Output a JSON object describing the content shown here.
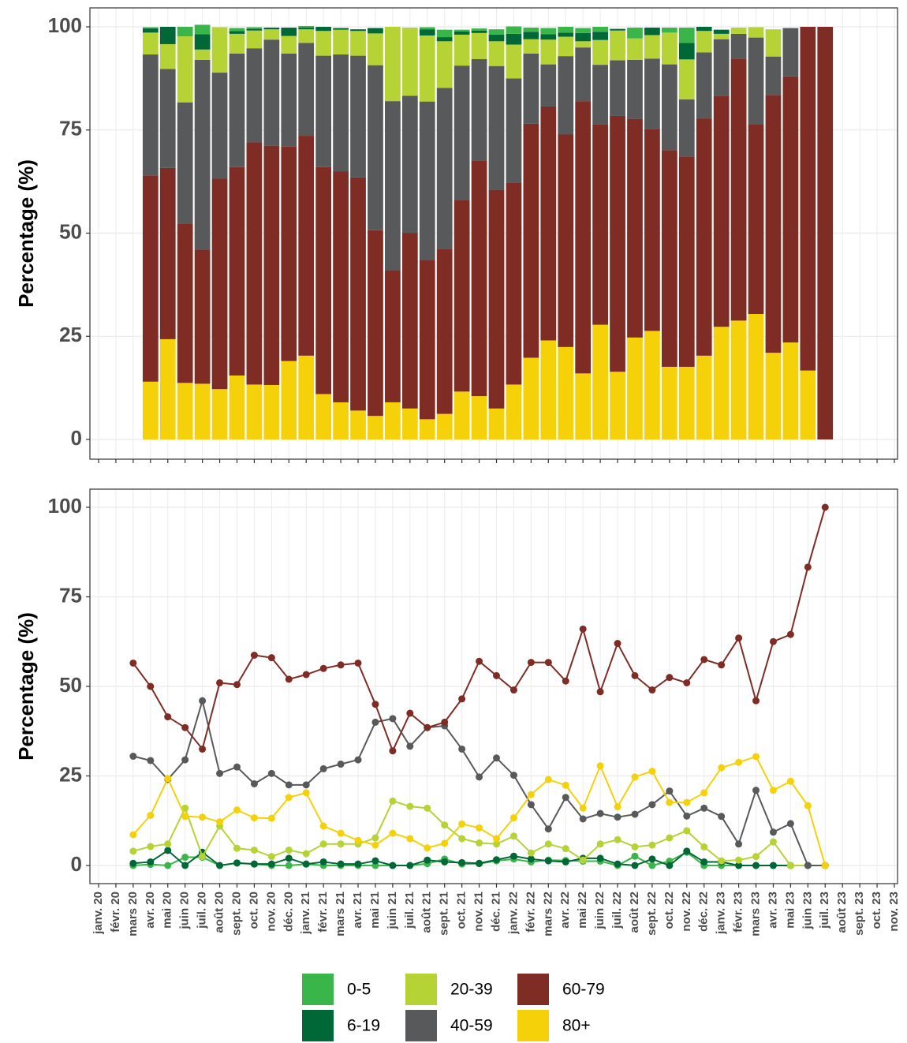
{
  "chart_data": [
    {
      "type": "bar",
      "stacked": true,
      "ylabel": "Percentage (%)",
      "ylim": [
        0,
        100
      ],
      "yticks": [
        0,
        25,
        50,
        75,
        100
      ],
      "grid": true,
      "series": [
        {
          "color": "#f5d10a",
          "values": [
            null,
            null,
            null,
            14,
            24.3,
            13.7,
            13.5,
            12.2,
            15.5,
            13.3,
            13.2,
            19,
            20.3,
            11,
            9,
            7,
            5.7,
            9,
            7.5,
            4.9,
            6.2,
            11.6,
            10.5,
            7.5,
            13.3,
            19.8,
            24,
            22.4,
            16,
            27.8,
            16.4,
            24.7,
            26.3,
            17.6,
            17.6,
            20.3,
            27.3,
            28.8,
            30.4,
            21,
            23.5,
            16.7,
            0,
            null,
            null,
            null,
            null
          ]
        },
        {
          "color": "#7f2c25",
          "values": [
            null,
            null,
            null,
            50,
            41.5,
            38.5,
            32.5,
            51,
            50.5,
            58.7,
            58,
            52,
            53.3,
            55,
            56,
            56.5,
            45,
            32,
            42.5,
            38.5,
            40,
            46.5,
            57,
            53,
            49,
            56.7,
            56.7,
            51.5,
            66,
            48.5,
            62,
            53,
            49,
            52.5,
            51,
            57.5,
            56,
            63.5,
            46,
            62.5,
            64.5,
            83.3,
            100,
            null,
            null,
            null,
            null
          ]
        },
        {
          "color": "#58595b",
          "values": [
            null,
            null,
            null,
            29.3,
            24,
            29.5,
            46,
            25.7,
            27.5,
            22.8,
            25.7,
            22.5,
            22.5,
            27,
            28.3,
            29.5,
            40,
            41,
            33.3,
            38.5,
            39,
            32.5,
            24.7,
            30,
            25.2,
            17,
            10.2,
            19,
            13,
            14.5,
            13.5,
            14.3,
            17,
            20.8,
            13.8,
            16,
            13.7,
            6,
            21,
            9.3,
            11.7,
            0,
            0,
            null,
            null,
            null,
            null
          ]
        },
        {
          "color": "#b5d334",
          "values": [
            null,
            null,
            null,
            5.3,
            6,
            16,
            2.5,
            11,
            4.8,
            4.3,
            2.5,
            4.3,
            3.3,
            6,
            6,
            6,
            7.7,
            18,
            16.5,
            16,
            11.3,
            7.5,
            6.3,
            6,
            8.2,
            3.5,
            6,
            4.7,
            1.5,
            6,
            7.2,
            5.2,
            5.7,
            7.7,
            9.7,
            5.2,
            1.3,
            1.5,
            2.5,
            6.6,
            0,
            0,
            0,
            null,
            null,
            null,
            null
          ]
        },
        {
          "color": "#006837",
          "values": [
            null,
            null,
            null,
            1,
            4.2,
            0,
            3.7,
            0,
            0.7,
            0.4,
            0.4,
            2,
            0.4,
            1,
            0.4,
            0.4,
            1.3,
            0,
            0,
            1.5,
            1,
            0.8,
            0.6,
            1.6,
            2.6,
            1.8,
            1.3,
            1,
            2,
            2,
            0.4,
            0,
            1.8,
            0,
            4,
            1,
            1,
            0,
            0,
            0,
            0,
            0,
            0,
            null,
            null,
            null,
            null
          ]
        },
        {
          "color": "#3ab54a",
          "values": [
            null,
            null,
            null,
            0.3,
            0,
            2.3,
            2.3,
            0,
            0.7,
            0.4,
            0,
            0,
            0.4,
            0,
            0,
            0,
            0,
            0,
            0,
            0.5,
            1.8,
            0.4,
            0.5,
            1.3,
            1.8,
            1,
            1.5,
            1.4,
            1.2,
            1.2,
            0,
            2.6,
            0,
            1.2,
            3.7,
            0,
            0,
            0,
            0,
            0,
            0,
            0,
            0,
            null,
            null,
            null,
            null
          ]
        }
      ]
    },
    {
      "type": "line",
      "ylabel": "Percentage (%)",
      "ylim": [
        0,
        100
      ],
      "yticks": [
        0,
        25,
        50,
        75,
        100
      ],
      "grid": true,
      "categories": [
        "janv. 20",
        "févr. 20",
        "mars 20",
        "avr. 20",
        "mai 20",
        "juin 20",
        "juil. 20",
        "août 20",
        "sept. 20",
        "oct. 20",
        "nov. 20",
        "déc. 20",
        "janv. 21",
        "févr. 21",
        "mars 21",
        "avr. 21",
        "mai 21",
        "juin 21",
        "juil. 21",
        "août 21",
        "sept. 21",
        "oct. 21",
        "nov. 21",
        "déc. 21",
        "janv. 22",
        "févr. 22",
        "mars 22",
        "avr. 22",
        "mai 22",
        "juin 22",
        "juil. 22",
        "août 22",
        "sept. 22",
        "oct. 22",
        "nov. 22",
        "déc. 22",
        "janv. 23",
        "févr. 23",
        "mars 23",
        "avr. 23",
        "mai 23",
        "juin 23",
        "juil. 23",
        "août 23",
        "sept. 23",
        "oct. 23",
        "nov. 23"
      ],
      "series": [
        {
          "name": "0-5",
          "color": "#3ab54a",
          "values": [
            null,
            null,
            0,
            0.3,
            0,
            2.3,
            2.3,
            0,
            0.7,
            0.4,
            0,
            0,
            0.4,
            0,
            0,
            0,
            0,
            0,
            0,
            0.5,
            1.8,
            0.4,
            0.5,
            1.3,
            1.8,
            1,
            1.5,
            1.4,
            1.2,
            1.2,
            0,
            2.6,
            0,
            1.2,
            3.7,
            0,
            0,
            0,
            0,
            0,
            0,
            0,
            0,
            null,
            null,
            null,
            null
          ]
        },
        {
          "name": "6-19",
          "color": "#006837",
          "values": [
            null,
            null,
            0.6,
            1,
            4.2,
            0,
            3.7,
            0,
            0.7,
            0.4,
            0.4,
            2,
            0.4,
            1,
            0.4,
            0.4,
            1.3,
            0,
            0,
            1.5,
            1,
            0.8,
            0.6,
            1.6,
            2.6,
            1.8,
            1.3,
            1,
            2,
            2,
            0.4,
            0,
            1.8,
            0,
            4,
            1,
            1,
            0,
            0,
            0,
            0,
            0,
            0,
            null,
            null,
            null,
            null
          ]
        },
        {
          "name": "20-39",
          "color": "#b5d334",
          "values": [
            null,
            null,
            4,
            5.3,
            6,
            16,
            2.5,
            11,
            4.8,
            4.3,
            2.5,
            4.3,
            3.3,
            6,
            6,
            6,
            7.7,
            18,
            16.5,
            16,
            11.3,
            7.5,
            6.3,
            6,
            8.2,
            3.5,
            6,
            4.7,
            1.5,
            6,
            7.2,
            5.2,
            5.7,
            7.7,
            9.7,
            5.2,
            1.3,
            1.5,
            2.5,
            6.6,
            0,
            0,
            0,
            null,
            null,
            null,
            null
          ]
        },
        {
          "name": "40-59",
          "color": "#58595b",
          "values": [
            null,
            null,
            30.5,
            29.3,
            24,
            29.5,
            46,
            25.7,
            27.5,
            22.8,
            25.7,
            22.5,
            22.5,
            27,
            28.3,
            29.5,
            40,
            41,
            33.3,
            38.5,
            39,
            32.5,
            24.7,
            30,
            25.2,
            17,
            10.2,
            19,
            13,
            14.5,
            13.5,
            14.3,
            17,
            20.8,
            13.8,
            16,
            13.7,
            6,
            21,
            9.3,
            11.7,
            0,
            0,
            null,
            null,
            null,
            null
          ]
        },
        {
          "name": "60-79",
          "color": "#7f2c25",
          "values": [
            null,
            null,
            56.5,
            50,
            41.5,
            38.5,
            32.5,
            51,
            50.5,
            58.7,
            58,
            52,
            53.3,
            55,
            56,
            56.5,
            45,
            32,
            42.5,
            38.5,
            40,
            46.5,
            57,
            53,
            49,
            56.7,
            56.7,
            51.5,
            66,
            48.5,
            62,
            53,
            49,
            52.5,
            51,
            57.5,
            56,
            63.5,
            46,
            62.5,
            64.5,
            83.3,
            100,
            null,
            null,
            null,
            null
          ]
        },
        {
          "name": "80+",
          "color": "#f5d10a",
          "values": [
            null,
            null,
            8.6,
            14,
            24.3,
            13.7,
            13.5,
            12.2,
            15.5,
            13.3,
            13.2,
            19,
            20.3,
            11,
            9,
            7,
            5.7,
            9,
            7.5,
            4.9,
            6.2,
            11.6,
            10.5,
            7.5,
            13.3,
            19.8,
            24,
            22.4,
            16,
            27.8,
            16.4,
            24.7,
            26.3,
            17.6,
            17.6,
            20.3,
            27.3,
            28.8,
            30.4,
            21,
            23.5,
            16.7,
            0,
            null,
            null,
            null,
            null
          ]
        }
      ]
    }
  ]
}
